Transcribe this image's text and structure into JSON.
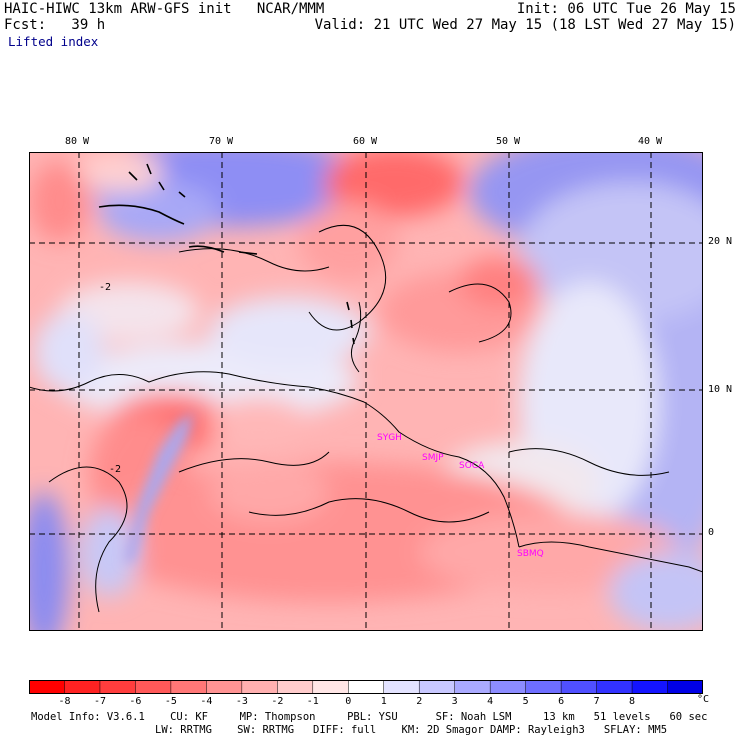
{
  "header": {
    "left_line1": "HAIC-HIWC 13km ARW-GFS init   NCAR/MMM",
    "left_line2": "Fcst:   39 h",
    "right_line1": "Init: 06 UTC Tue 26 May 15",
    "right_line2": "Valid: 21 UTC Wed 27 May 15 (18 LST Wed 27 May 15)",
    "field_name": "Lifted index"
  },
  "map": {
    "lon_labels": [
      "80 W",
      "70 W",
      "60 W",
      "50 W",
      "40 W"
    ],
    "lat_labels": [
      "20 N",
      "10 N",
      "0"
    ],
    "stations": [
      "SYGH",
      "SMJP",
      "SOCA",
      "SBMQ"
    ],
    "contour_labels": [
      "-2",
      "-2"
    ]
  },
  "colorbar": {
    "labels": [
      "-8",
      "-7",
      "-6",
      "-5",
      "-4",
      "-3",
      "-2",
      "-1",
      "0",
      "1",
      "2",
      "3",
      "4",
      "5",
      "6",
      "7",
      "8"
    ],
    "unit": "°C",
    "colors": [
      "#ff0000",
      "#ff2222",
      "#ff3d3d",
      "#ff5959",
      "#ff7777",
      "#ff9393",
      "#ffb0b0",
      "#ffcccc",
      "#ffe6e6",
      "#ffffff",
      "#e3e3ff",
      "#c8c8ff",
      "#aaaaff",
      "#8c8cff",
      "#6e6eff",
      "#5050ff",
      "#3232ff",
      "#1414ff",
      "#0000e6"
    ]
  },
  "footer": {
    "line1": "Model Info: V3.6.1    CU: KF     MP: Thompson     PBL: YSU      SF: Noah LSM     13 km   51 levels   60 sec",
    "line2": "LW: RRTMG    SW: RRTMG   DIFF: full    KM: 2D Smagor DAMP: Rayleigh3   SFLAY: MM5"
  }
}
